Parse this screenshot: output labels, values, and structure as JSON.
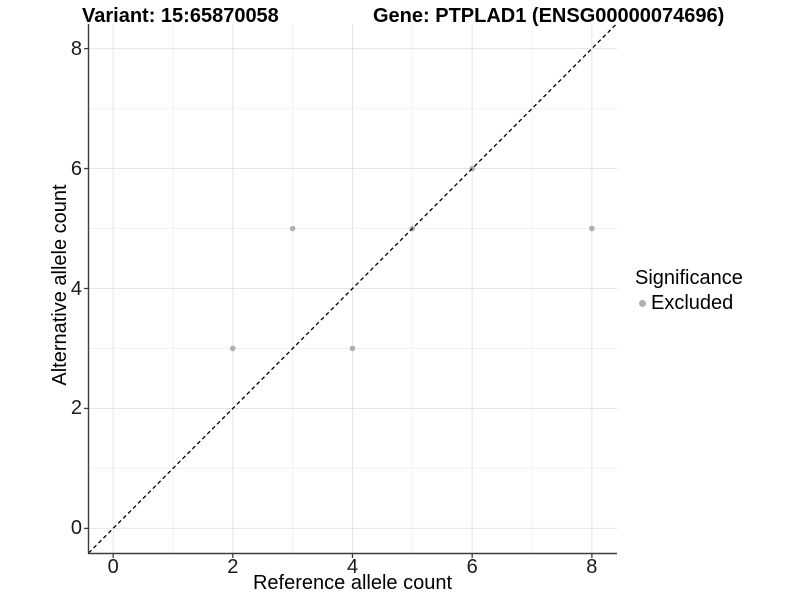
{
  "titles": {
    "variant": "Variant: 15:65870058",
    "gene": "Gene: PTPLAD1 (ENSG00000074696)"
  },
  "axes": {
    "x_title": "Reference allele count",
    "y_title": "Alternative allele count"
  },
  "legend": {
    "title": "Significance",
    "items": [
      {
        "label": "Excluded",
        "color": "#afafaf"
      }
    ]
  },
  "colors": {
    "point": "#afafaf",
    "axis_line": "#3d3d3d",
    "grid_major": "#e5e5e5",
    "grid_minor": "#f2f2f2",
    "reference_line": "#000000",
    "tick_label": "#1a1a1a"
  },
  "chart_data": {
    "type": "scatter",
    "title": "Variant: 15:65870058   Gene: PTPLAD1 (ENSG00000074696)",
    "xlabel": "Reference allele count",
    "ylabel": "Alternative allele count",
    "xlim": [
      -0.42,
      8.42
    ],
    "ylim": [
      -0.41,
      8.41
    ],
    "xticks": [
      0,
      2,
      4,
      6,
      8
    ],
    "yticks": [
      0,
      2,
      4,
      6,
      8
    ],
    "xticks_minor": [
      1,
      3,
      5,
      7
    ],
    "yticks_minor": [
      1,
      3,
      5,
      7
    ],
    "grid": "major+minor",
    "legend_position": "right",
    "series": [
      {
        "name": "Excluded",
        "color": "#afafaf",
        "points": [
          [
            2,
            3
          ],
          [
            3,
            5
          ],
          [
            4,
            3
          ],
          [
            5,
            5
          ],
          [
            6,
            6
          ],
          [
            8,
            5
          ]
        ]
      }
    ],
    "reference_line": {
      "kind": "identity y=x",
      "style": "dashed",
      "color": "#000000"
    }
  }
}
